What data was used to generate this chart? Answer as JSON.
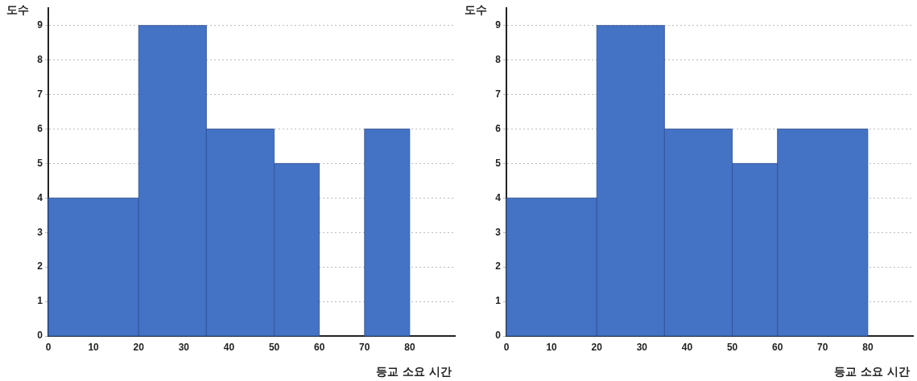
{
  "chart_data": [
    {
      "type": "histogram",
      "xlabel": "등교 소요 시간",
      "ylabel": "도수",
      "bins": [
        0,
        20,
        35,
        50,
        60,
        70,
        80
      ],
      "values": [
        4,
        9,
        6,
        5,
        0,
        6
      ],
      "color": "#4472c4",
      "xlim": [
        0,
        90
      ],
      "xticks": [
        0,
        10,
        20,
        30,
        40,
        50,
        60,
        70,
        80
      ],
      "ylim": [
        0,
        9.5
      ],
      "yticks": [
        0,
        1,
        2,
        3,
        4,
        5,
        6,
        7,
        8,
        9
      ],
      "grid": "y"
    },
    {
      "type": "histogram",
      "xlabel": "등교 소요 시간",
      "ylabel": "도수",
      "bins": [
        0,
        20,
        35,
        50,
        60,
        80
      ],
      "values": [
        4,
        9,
        6,
        5,
        6
      ],
      "color": "#4472c4",
      "xlim": [
        0,
        90
      ],
      "xticks": [
        0,
        10,
        20,
        30,
        40,
        50,
        60,
        70,
        80
      ],
      "ylim": [
        0,
        9.5
      ],
      "yticks": [
        0,
        1,
        2,
        3,
        4,
        5,
        6,
        7,
        8,
        9
      ],
      "grid": "y"
    }
  ]
}
